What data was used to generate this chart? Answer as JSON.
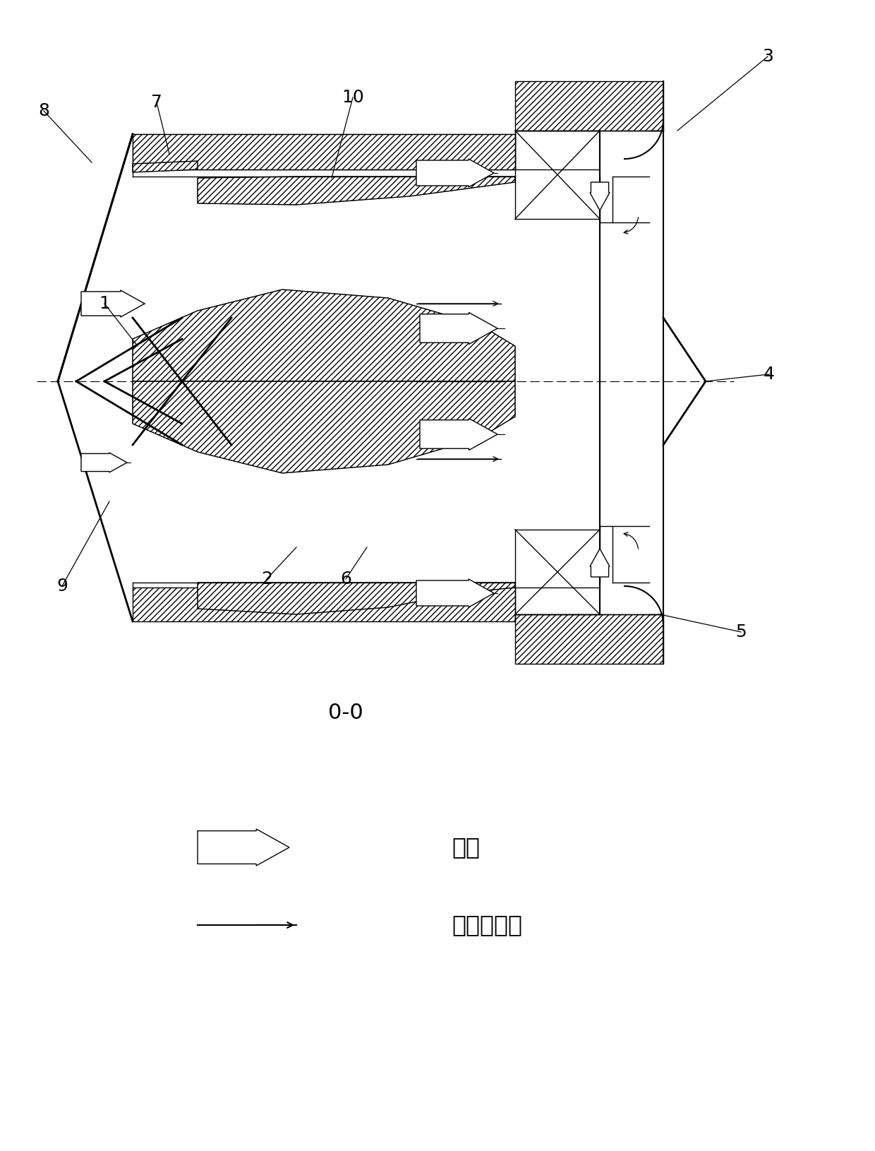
{
  "background_color": "#ffffff",
  "line_color": "#000000",
  "section_label": "0-0",
  "legend_air_label": "空气",
  "legend_fuel_label": "燃油及液滴",
  "figsize": [
    12.4,
    16.3
  ],
  "dpi": 100,
  "label_fontsize": 18,
  "legend_fontsize": 24,
  "section_fontsize": 22
}
